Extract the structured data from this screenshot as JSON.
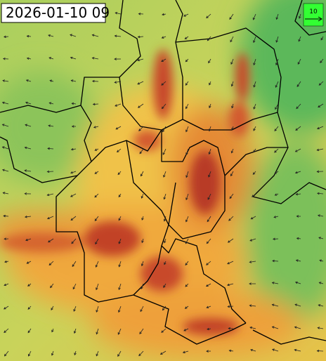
{
  "timestamp": "2026-01-10 09",
  "legend": {
    "label": "10"
  }
}
